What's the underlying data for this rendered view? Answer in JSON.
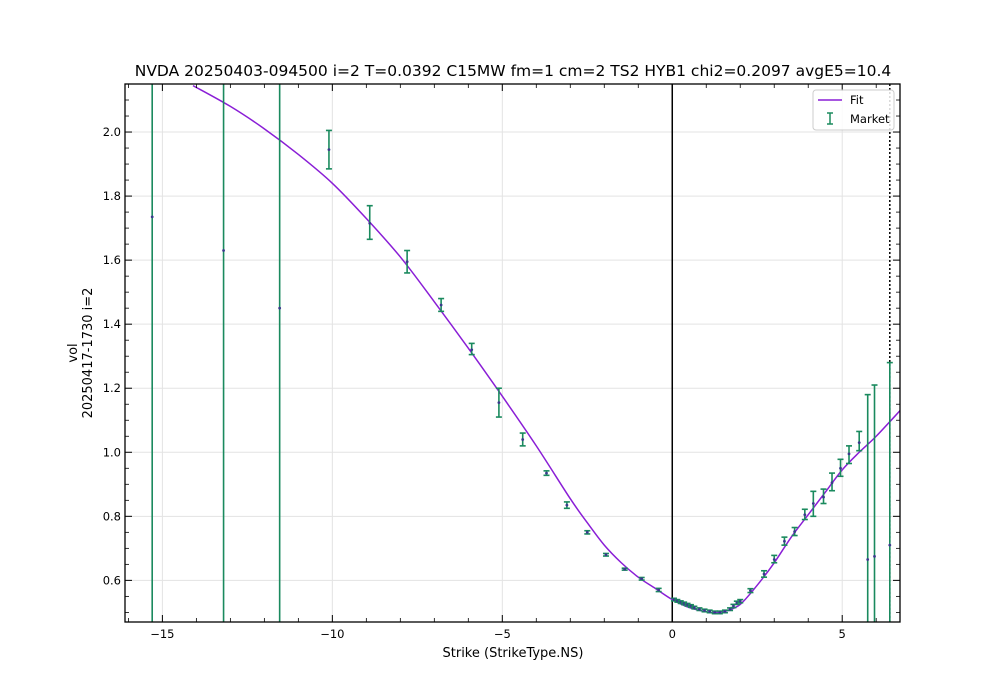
{
  "chart_data": {
    "type": "line",
    "title": "NVDA 20250403-094500 i=2 T=0.0392 C15MW fm=1 cm=2 TS2 HYB1 chi2=0.2097 avgE5=10.4",
    "xlabel": "Strike (StrikeType.NS)",
    "ylabel_line1": "vol",
    "ylabel_line2": "20250417-1730 i=2",
    "xlim": [
      -16.1,
      6.7
    ],
    "ylim": [
      0.47,
      2.15
    ],
    "x_ticks": [
      -15,
      -10,
      -5,
      0,
      5
    ],
    "x_tick_labels": [
      "−15",
      "−10",
      "−5",
      "0",
      "5"
    ],
    "y_ticks": [
      0.6,
      0.8,
      1.0,
      1.2,
      1.4,
      1.6,
      1.8,
      2.0
    ],
    "y_tick_labels": [
      "0.6",
      "0.8",
      "1.0",
      "1.2",
      "1.4",
      "1.6",
      "1.8",
      "2.0"
    ],
    "grid": true,
    "legend_position": "top-right",
    "vlines": [
      {
        "x": 0,
        "style": "solid",
        "color": "#000000"
      },
      {
        "x": 6.4,
        "style": "dotted",
        "color": "#000000"
      }
    ],
    "series": [
      {
        "name": "Fit",
        "kind": "line",
        "color": "#8a1ed6",
        "x": [
          -14.1,
          -13.0,
          -12.0,
          -11.0,
          -10.0,
          -9.0,
          -8.0,
          -7.0,
          -6.0,
          -5.0,
          -4.0,
          -3.0,
          -2.5,
          -2.0,
          -1.5,
          -1.0,
          -0.5,
          0.0,
          0.5,
          1.0,
          1.3,
          1.6,
          2.0,
          2.5,
          3.0,
          3.5,
          4.0,
          4.5,
          5.0,
          5.5,
          6.0,
          6.7
        ],
        "y": [
          2.145,
          2.08,
          2.01,
          1.93,
          1.84,
          1.73,
          1.61,
          1.47,
          1.325,
          1.175,
          1.02,
          0.855,
          0.78,
          0.71,
          0.655,
          0.61,
          0.575,
          0.54,
          0.515,
          0.502,
          0.499,
          0.505,
          0.525,
          0.585,
          0.655,
          0.735,
          0.805,
          0.875,
          0.945,
          1.0,
          1.05,
          1.13
        ]
      },
      {
        "name": "Market",
        "kind": "errorbar",
        "color": "#1a8a5e",
        "points": [
          {
            "x": -15.3,
            "y": 1.735,
            "lo": 0.47,
            "hi": 2.15
          },
          {
            "x": -13.2,
            "y": 1.63,
            "lo": 0.47,
            "hi": 2.15
          },
          {
            "x": -11.55,
            "y": 1.45,
            "lo": 0.47,
            "hi": 2.15
          },
          {
            "x": -10.1,
            "y": 1.945,
            "lo": 1.885,
            "hi": 2.005
          },
          {
            "x": -8.9,
            "y": 1.715,
            "lo": 1.665,
            "hi": 1.77
          },
          {
            "x": -7.8,
            "y": 1.595,
            "lo": 1.56,
            "hi": 1.63
          },
          {
            "x": -6.8,
            "y": 1.46,
            "lo": 1.44,
            "hi": 1.48
          },
          {
            "x": -5.9,
            "y": 1.32,
            "lo": 1.305,
            "hi": 1.34
          },
          {
            "x": -5.1,
            "y": 1.155,
            "lo": 1.11,
            "hi": 1.2
          },
          {
            "x": -4.4,
            "y": 1.04,
            "lo": 1.02,
            "hi": 1.06
          },
          {
            "x": -3.7,
            "y": 0.935,
            "lo": 0.928,
            "hi": 0.942
          },
          {
            "x": -3.1,
            "y": 0.835,
            "lo": 0.825,
            "hi": 0.845
          },
          {
            "x": -2.5,
            "y": 0.75,
            "lo": 0.745,
            "hi": 0.755
          },
          {
            "x": -1.95,
            "y": 0.68,
            "lo": 0.676,
            "hi": 0.684
          },
          {
            "x": -1.4,
            "y": 0.635,
            "lo": 0.632,
            "hi": 0.638
          },
          {
            "x": -0.9,
            "y": 0.605,
            "lo": 0.601,
            "hi": 0.609
          },
          {
            "x": -0.4,
            "y": 0.57,
            "lo": 0.565,
            "hi": 0.575
          },
          {
            "x": 0.05,
            "y": 0.54,
            "lo": 0.536,
            "hi": 0.544
          },
          {
            "x": 0.15,
            "y": 0.536,
            "lo": 0.532,
            "hi": 0.54
          },
          {
            "x": 0.25,
            "y": 0.532,
            "lo": 0.528,
            "hi": 0.536
          },
          {
            "x": 0.35,
            "y": 0.528,
            "lo": 0.524,
            "hi": 0.532
          },
          {
            "x": 0.45,
            "y": 0.524,
            "lo": 0.52,
            "hi": 0.528
          },
          {
            "x": 0.55,
            "y": 0.52,
            "lo": 0.516,
            "hi": 0.524
          },
          {
            "x": 0.65,
            "y": 0.515,
            "lo": 0.511,
            "hi": 0.519
          },
          {
            "x": 0.8,
            "y": 0.51,
            "lo": 0.506,
            "hi": 0.514
          },
          {
            "x": 0.95,
            "y": 0.506,
            "lo": 0.502,
            "hi": 0.51
          },
          {
            "x": 1.1,
            "y": 0.503,
            "lo": 0.499,
            "hi": 0.507
          },
          {
            "x": 1.25,
            "y": 0.5,
            "lo": 0.496,
            "hi": 0.504
          },
          {
            "x": 1.4,
            "y": 0.5,
            "lo": 0.496,
            "hi": 0.504
          },
          {
            "x": 1.55,
            "y": 0.503,
            "lo": 0.499,
            "hi": 0.507
          },
          {
            "x": 1.7,
            "y": 0.51,
            "lo": 0.506,
            "hi": 0.514
          },
          {
            "x": 1.8,
            "y": 0.52,
            "lo": 0.515,
            "hi": 0.525
          },
          {
            "x": 1.9,
            "y": 0.53,
            "lo": 0.525,
            "hi": 0.535
          },
          {
            "x": 2.0,
            "y": 0.535,
            "lo": 0.53,
            "hi": 0.54
          },
          {
            "x": 2.3,
            "y": 0.568,
            "lo": 0.562,
            "hi": 0.574
          },
          {
            "x": 2.7,
            "y": 0.62,
            "lo": 0.61,
            "hi": 0.63
          },
          {
            "x": 3.0,
            "y": 0.665,
            "lo": 0.655,
            "hi": 0.678
          },
          {
            "x": 3.3,
            "y": 0.722,
            "lo": 0.71,
            "hi": 0.735
          },
          {
            "x": 3.6,
            "y": 0.752,
            "lo": 0.74,
            "hi": 0.765
          },
          {
            "x": 3.9,
            "y": 0.805,
            "lo": 0.79,
            "hi": 0.822
          },
          {
            "x": 4.15,
            "y": 0.84,
            "lo": 0.8,
            "hi": 0.878
          },
          {
            "x": 4.45,
            "y": 0.86,
            "lo": 0.84,
            "hi": 0.885
          },
          {
            "x": 4.7,
            "y": 0.905,
            "lo": 0.88,
            "hi": 0.935
          },
          {
            "x": 4.95,
            "y": 0.95,
            "lo": 0.925,
            "hi": 0.978
          },
          {
            "x": 5.2,
            "y": 0.995,
            "lo": 0.965,
            "hi": 1.02
          },
          {
            "x": 5.5,
            "y": 1.03,
            "lo": 1.005,
            "hi": 1.065
          },
          {
            "x": 5.75,
            "y": 0.665,
            "lo": 0.47,
            "hi": 1.18
          },
          {
            "x": 5.95,
            "y": 0.675,
            "lo": 0.47,
            "hi": 1.21
          },
          {
            "x": 6.4,
            "y": 0.71,
            "lo": 0.47,
            "hi": 1.28
          }
        ]
      }
    ]
  }
}
